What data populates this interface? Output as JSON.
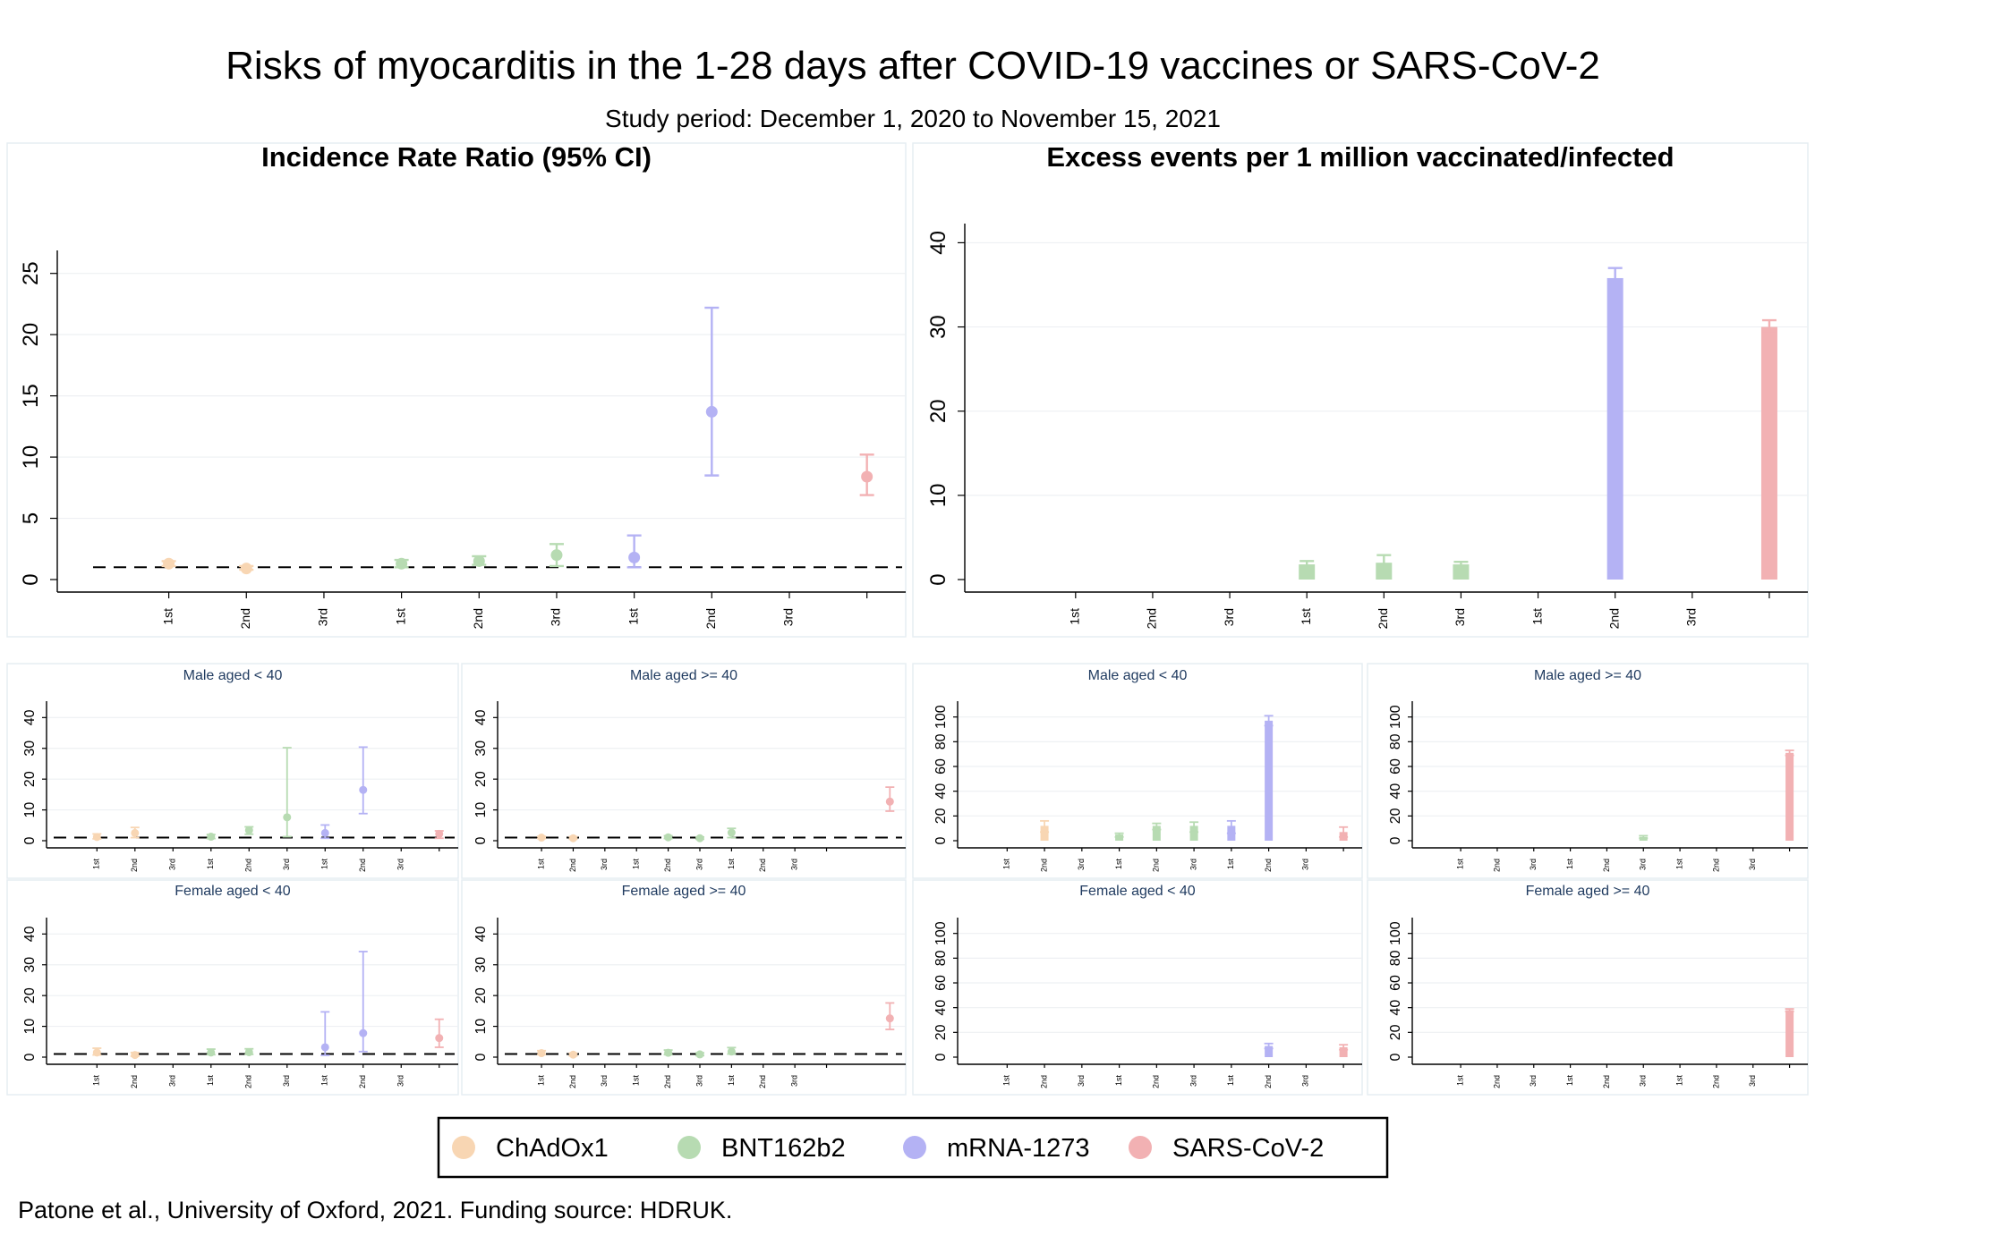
{
  "title": "Risks of myocarditis in the 1-28 days after COVID-19 vaccines or SARS-CoV-2",
  "subtitle": "Study period: December 1, 2020 to November 15, 2021",
  "source": "Patone et al., University of Oxford, 2021. Funding source: HDRUK.",
  "colors": {
    "ChAdOx1": "#f8d6b3",
    "BNT162b2": "#b7dbb2",
    "mRNA-1273": "#b4b2f4",
    "SARS-CoV-2": "#f2b1b3"
  },
  "legend": {
    "items": [
      {
        "label": "ChAdOx1",
        "color": "#f8d6b3"
      },
      {
        "label": "BNT162b2",
        "color": "#b7dbb2"
      },
      {
        "label": "mRNA-1273",
        "color": "#b4b2f4"
      },
      {
        "label": "SARS-CoV-2",
        "color": "#f2b1b3"
      }
    ]
  },
  "chart_data": [
    {
      "id": "irr-overall",
      "type": "scatter",
      "title": "Incidence Rate Ratio (95% CI)",
      "x": [
        "1st",
        "2nd",
        "3rd",
        "1st",
        "2nd",
        "3rd",
        "1st",
        "2nd",
        "3rd",
        ""
      ],
      "ylim": [
        0,
        26
      ],
      "yticks": [
        0,
        5,
        10,
        15,
        20,
        25
      ],
      "reference_line": 1,
      "points": [
        {
          "i": 0,
          "y": 1.3,
          "lo": 1.1,
          "hi": 1.5,
          "color": "ChAdOx1"
        },
        {
          "i": 1,
          "y": 0.9,
          "lo": 0.8,
          "hi": 1.1,
          "color": "ChAdOx1"
        },
        {
          "i": 3,
          "y": 1.3,
          "lo": 1.0,
          "hi": 1.6,
          "color": "BNT162b2"
        },
        {
          "i": 4,
          "y": 1.5,
          "lo": 1.2,
          "hi": 1.9,
          "color": "BNT162b2"
        },
        {
          "i": 5,
          "y": 2.0,
          "lo": 1.1,
          "hi": 2.9,
          "color": "BNT162b2"
        },
        {
          "i": 6,
          "y": 1.8,
          "lo": 1.0,
          "hi": 3.6,
          "color": "mRNA-1273"
        },
        {
          "i": 7,
          "y": 13.7,
          "lo": 8.5,
          "hi": 22.2,
          "color": "mRNA-1273"
        },
        {
          "i": 9,
          "y": 8.4,
          "lo": 6.9,
          "hi": 10.2,
          "color": "SARS-CoV-2"
        }
      ]
    },
    {
      "id": "excess-overall",
      "type": "bar",
      "title": "Excess events per 1 million vaccinated/infected",
      "x": [
        "1st",
        "2nd",
        "3rd",
        "1st",
        "2nd",
        "3rd",
        "1st",
        "2nd",
        "3rd",
        ""
      ],
      "ylim": [
        0,
        41
      ],
      "yticks": [
        0,
        10,
        20,
        30,
        40
      ],
      "bars": [
        {
          "i": 3,
          "y": 1.8,
          "lo": 1.3,
          "hi": 2.2,
          "color": "BNT162b2"
        },
        {
          "i": 4,
          "y": 2.0,
          "lo": 1.0,
          "hi": 2.9,
          "color": "BNT162b2"
        },
        {
          "i": 5,
          "y": 1.8,
          "lo": 1.2,
          "hi": 2.1,
          "color": "BNT162b2"
        },
        {
          "i": 7,
          "y": 35.8,
          "lo": 34.3,
          "hi": 37.0,
          "color": "mRNA-1273"
        },
        {
          "i": 9,
          "y": 30.0,
          "lo": 29.2,
          "hi": 30.8,
          "color": "SARS-CoV-2"
        }
      ]
    },
    {
      "id": "irr-male-lt40",
      "type": "scatter",
      "title": "Male aged < 40",
      "x": [
        "1st",
        "2nd",
        "3rd",
        "1st",
        "2nd",
        "3rd",
        "1st",
        "2nd",
        "3rd",
        ""
      ],
      "ylim": [
        0,
        43
      ],
      "yticks": [
        0,
        10,
        20,
        30,
        40
      ],
      "reference_line": 1,
      "points": [
        {
          "i": 0,
          "y": 1.2,
          "lo": 0.6,
          "hi": 2.2,
          "color": "ChAdOx1"
        },
        {
          "i": 1,
          "y": 2.5,
          "lo": 1.0,
          "hi": 4.3,
          "color": "ChAdOx1"
        },
        {
          "i": 3,
          "y": 1.3,
          "lo": 0.7,
          "hi": 2.0,
          "color": "BNT162b2"
        },
        {
          "i": 4,
          "y": 3.4,
          "lo": 2.1,
          "hi": 4.5,
          "color": "BNT162b2"
        },
        {
          "i": 5,
          "y": 7.6,
          "lo": 1.3,
          "hi": 30.2,
          "color": "BNT162b2"
        },
        {
          "i": 6,
          "y": 2.5,
          "lo": 0.8,
          "hi": 5.1,
          "color": "mRNA-1273"
        },
        {
          "i": 7,
          "y": 16.5,
          "lo": 8.8,
          "hi": 30.4,
          "color": "mRNA-1273"
        },
        {
          "i": 9,
          "y": 2.2,
          "lo": 0.8,
          "hi": 3.2,
          "color": "SARS-CoV-2"
        }
      ]
    },
    {
      "id": "irr-male-ge40",
      "type": "scatter",
      "title": "Male aged >= 40",
      "x": [
        "1st",
        "2nd",
        "3rd",
        "1st",
        "2nd",
        "3rd",
        "1st",
        "2nd",
        "3rd",
        ""
      ],
      "ylim": [
        0,
        43
      ],
      "yticks": [
        0,
        10,
        20,
        30,
        40
      ],
      "reference_line": 1,
      "points": [
        {
          "i": 0,
          "y": 1.0,
          "lo": 0.7,
          "hi": 1.4,
          "color": "ChAdOx1"
        },
        {
          "i": 1,
          "y": 0.8,
          "lo": 0.5,
          "hi": 1.3,
          "color": "ChAdOx1"
        },
        {
          "i": 4,
          "y": 1.1,
          "lo": 0.7,
          "hi": 1.6,
          "color": "BNT162b2"
        },
        {
          "i": 5,
          "y": 0.8,
          "lo": 0.5,
          "hi": 1.2,
          "color": "BNT162b2"
        },
        {
          "i": 6,
          "y": 2.6,
          "lo": 1.0,
          "hi": 4.0,
          "color": "BNT162b2"
        },
        {
          "i": 11,
          "y": 12.7,
          "lo": 9.6,
          "hi": 17.4,
          "color": "SARS-CoV-2"
        }
      ]
    },
    {
      "id": "excess-male-lt40",
      "type": "bar",
      "title": "Male aged < 40",
      "x": [
        "1st",
        "2nd",
        "3rd",
        "1st",
        "2nd",
        "3rd",
        "1st",
        "2nd",
        "3rd",
        ""
      ],
      "ylim": [
        0,
        107
      ],
      "yticks": [
        0,
        20,
        40,
        60,
        80,
        100
      ],
      "bars": [
        {
          "i": 1,
          "y": 12,
          "lo": 7,
          "hi": 16,
          "color": "ChAdOx1"
        },
        {
          "i": 3,
          "y": 5,
          "lo": 3,
          "hi": 6,
          "color": "BNT162b2"
        },
        {
          "i": 4,
          "y": 12,
          "lo": 9,
          "hi": 14,
          "color": "BNT162b2"
        },
        {
          "i": 5,
          "y": 12,
          "lo": 7,
          "hi": 15,
          "color": "BNT162b2"
        },
        {
          "i": 6,
          "y": 12,
          "lo": 6,
          "hi": 16,
          "color": "mRNA-1273"
        },
        {
          "i": 7,
          "y": 97,
          "lo": 93,
          "hi": 101,
          "color": "mRNA-1273"
        },
        {
          "i": 9,
          "y": 7,
          "lo": 3,
          "hi": 11,
          "color": "SARS-CoV-2"
        }
      ]
    },
    {
      "id": "excess-male-ge40",
      "type": "bar",
      "title": "Male aged >= 40",
      "x": [
        "1st",
        "2nd",
        "3rd",
        "1st",
        "2nd",
        "3rd",
        "1st",
        "2nd",
        "3rd",
        ""
      ],
      "ylim": [
        0,
        107
      ],
      "yticks": [
        0,
        20,
        40,
        60,
        80,
        100
      ],
      "bars": [
        {
          "i": 5,
          "y": 3,
          "lo": 2,
          "hi": 4,
          "color": "BNT162b2"
        },
        {
          "i": 9,
          "y": 71,
          "lo": 69,
          "hi": 73,
          "color": "SARS-CoV-2"
        }
      ]
    },
    {
      "id": "irr-female-lt40",
      "type": "scatter",
      "title": "Female aged < 40",
      "x": [
        "1st",
        "2nd",
        "3rd",
        "1st",
        "2nd",
        "3rd",
        "1st",
        "2nd",
        "3rd",
        ""
      ],
      "ylim": [
        0,
        43
      ],
      "yticks": [
        0,
        10,
        20,
        30,
        40
      ],
      "reference_line": 1,
      "points": [
        {
          "i": 0,
          "y": 1.5,
          "lo": 0.7,
          "hi": 2.9,
          "color": "ChAdOx1"
        },
        {
          "i": 1,
          "y": 0.7,
          "lo": 0.3,
          "hi": 1.5,
          "color": "ChAdOx1"
        },
        {
          "i": 3,
          "y": 1.5,
          "lo": 0.8,
          "hi": 2.6,
          "color": "BNT162b2"
        },
        {
          "i": 4,
          "y": 1.6,
          "lo": 0.9,
          "hi": 2.7,
          "color": "BNT162b2"
        },
        {
          "i": 6,
          "y": 3.2,
          "lo": 0.6,
          "hi": 14.7,
          "color": "mRNA-1273"
        },
        {
          "i": 7,
          "y": 7.8,
          "lo": 1.8,
          "hi": 34.3,
          "color": "mRNA-1273"
        },
        {
          "i": 9,
          "y": 6.2,
          "lo": 3.2,
          "hi": 12.3,
          "color": "SARS-CoV-2"
        }
      ]
    },
    {
      "id": "irr-female-ge40",
      "type": "scatter",
      "title": "Female aged >= 40",
      "x": [
        "1st",
        "2nd",
        "3rd",
        "1st",
        "2nd",
        "3rd",
        "1st",
        "2nd",
        "3rd",
        ""
      ],
      "ylim": [
        0,
        43
      ],
      "yticks": [
        0,
        10,
        20,
        30,
        40
      ],
      "reference_line": 1,
      "points": [
        {
          "i": 0,
          "y": 1.3,
          "lo": 0.8,
          "hi": 2.1,
          "color": "ChAdOx1"
        },
        {
          "i": 1,
          "y": 0.8,
          "lo": 0.4,
          "hi": 1.3,
          "color": "ChAdOx1"
        },
        {
          "i": 4,
          "y": 1.4,
          "lo": 0.8,
          "hi": 2.3,
          "color": "BNT162b2"
        },
        {
          "i": 5,
          "y": 0.9,
          "lo": 0.5,
          "hi": 1.4,
          "color": "BNT162b2"
        },
        {
          "i": 6,
          "y": 1.8,
          "lo": 1.0,
          "hi": 3.1,
          "color": "BNT162b2"
        },
        {
          "i": 11,
          "y": 12.6,
          "lo": 9.0,
          "hi": 17.6,
          "color": "SARS-CoV-2"
        }
      ]
    },
    {
      "id": "excess-female-lt40",
      "type": "bar",
      "title": "Female aged < 40",
      "x": [
        "1st",
        "2nd",
        "3rd",
        "1st",
        "2nd",
        "3rd",
        "1st",
        "2nd",
        "3rd",
        ""
      ],
      "ylim": [
        0,
        107
      ],
      "yticks": [
        0,
        20,
        40,
        60,
        80,
        100
      ],
      "bars": [
        {
          "i": 7,
          "y": 9,
          "lo": 7,
          "hi": 11,
          "color": "mRNA-1273"
        },
        {
          "i": 9,
          "y": 8,
          "lo": 6,
          "hi": 10,
          "color": "SARS-CoV-2"
        }
      ]
    },
    {
      "id": "excess-female-ge40",
      "type": "bar",
      "title": "Female aged >= 40",
      "x": [
        "1st",
        "2nd",
        "3rd",
        "1st",
        "2nd",
        "3rd",
        "1st",
        "2nd",
        "3rd",
        ""
      ],
      "ylim": [
        0,
        107
      ],
      "yticks": [
        0,
        20,
        40,
        60,
        80,
        100
      ],
      "bars": [
        {
          "i": 9,
          "y": 38,
          "lo": 37,
          "hi": 39,
          "color": "SARS-CoV-2"
        }
      ]
    }
  ]
}
